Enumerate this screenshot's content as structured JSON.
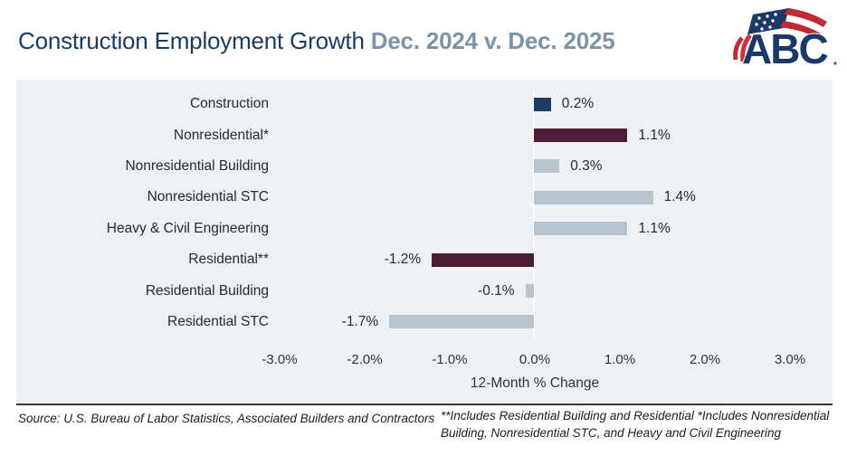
{
  "header": {
    "title_main": "Construction Employment Growth",
    "title_accent": "Dec. 2024 v. Dec. 2025",
    "title_color": "#1b3a5e",
    "accent_color": "#7e93a7",
    "logo_text": "ABC"
  },
  "chart_data": {
    "type": "bar",
    "orientation": "horizontal",
    "title": "Construction Employment Growth Dec. 2024 v. Dec. 2025",
    "categories": [
      "Construction",
      "Nonresidential*",
      "Nonresidential Building",
      "Nonresidential STC",
      "Heavy & Civil Engineering",
      "Residential**",
      "Residential Building",
      "Residential STC"
    ],
    "values": [
      0.2,
      1.1,
      0.3,
      1.4,
      1.1,
      -1.2,
      -0.1,
      -1.7
    ],
    "value_labels": [
      "0.2%",
      "1.1%",
      "0.3%",
      "1.4%",
      "1.1%",
      "-1.2%",
      "-0.1%",
      "-1.7%"
    ],
    "bar_colors": [
      "#1f3a60",
      "#4e1c37",
      "#b8c4ce",
      "#b8c4ce",
      "#b8c4ce",
      "#4e1c37",
      "#b8c4ce",
      "#b8c4ce"
    ],
    "xticks": [
      "-3.0%",
      "-2.0%",
      "-1.0%",
      "0.0%",
      "1.0%",
      "2.0%",
      "3.0%"
    ],
    "xtick_values": [
      -3,
      -2,
      -1,
      0,
      1,
      2,
      3
    ],
    "xlim": [
      -3,
      3
    ],
    "xlabel": "12-Month % Change",
    "plot_bg": "#eef1f4",
    "grid": false,
    "legend": "none"
  },
  "footer": {
    "source": "Source: U.S. Bureau of Labor Statistics, Associated Builders and Contractors",
    "footnote": "**Includes Residential Building and Residential *Includes Nonresidential Building, Nonresidential STC, and Heavy and Civil Engineering"
  }
}
